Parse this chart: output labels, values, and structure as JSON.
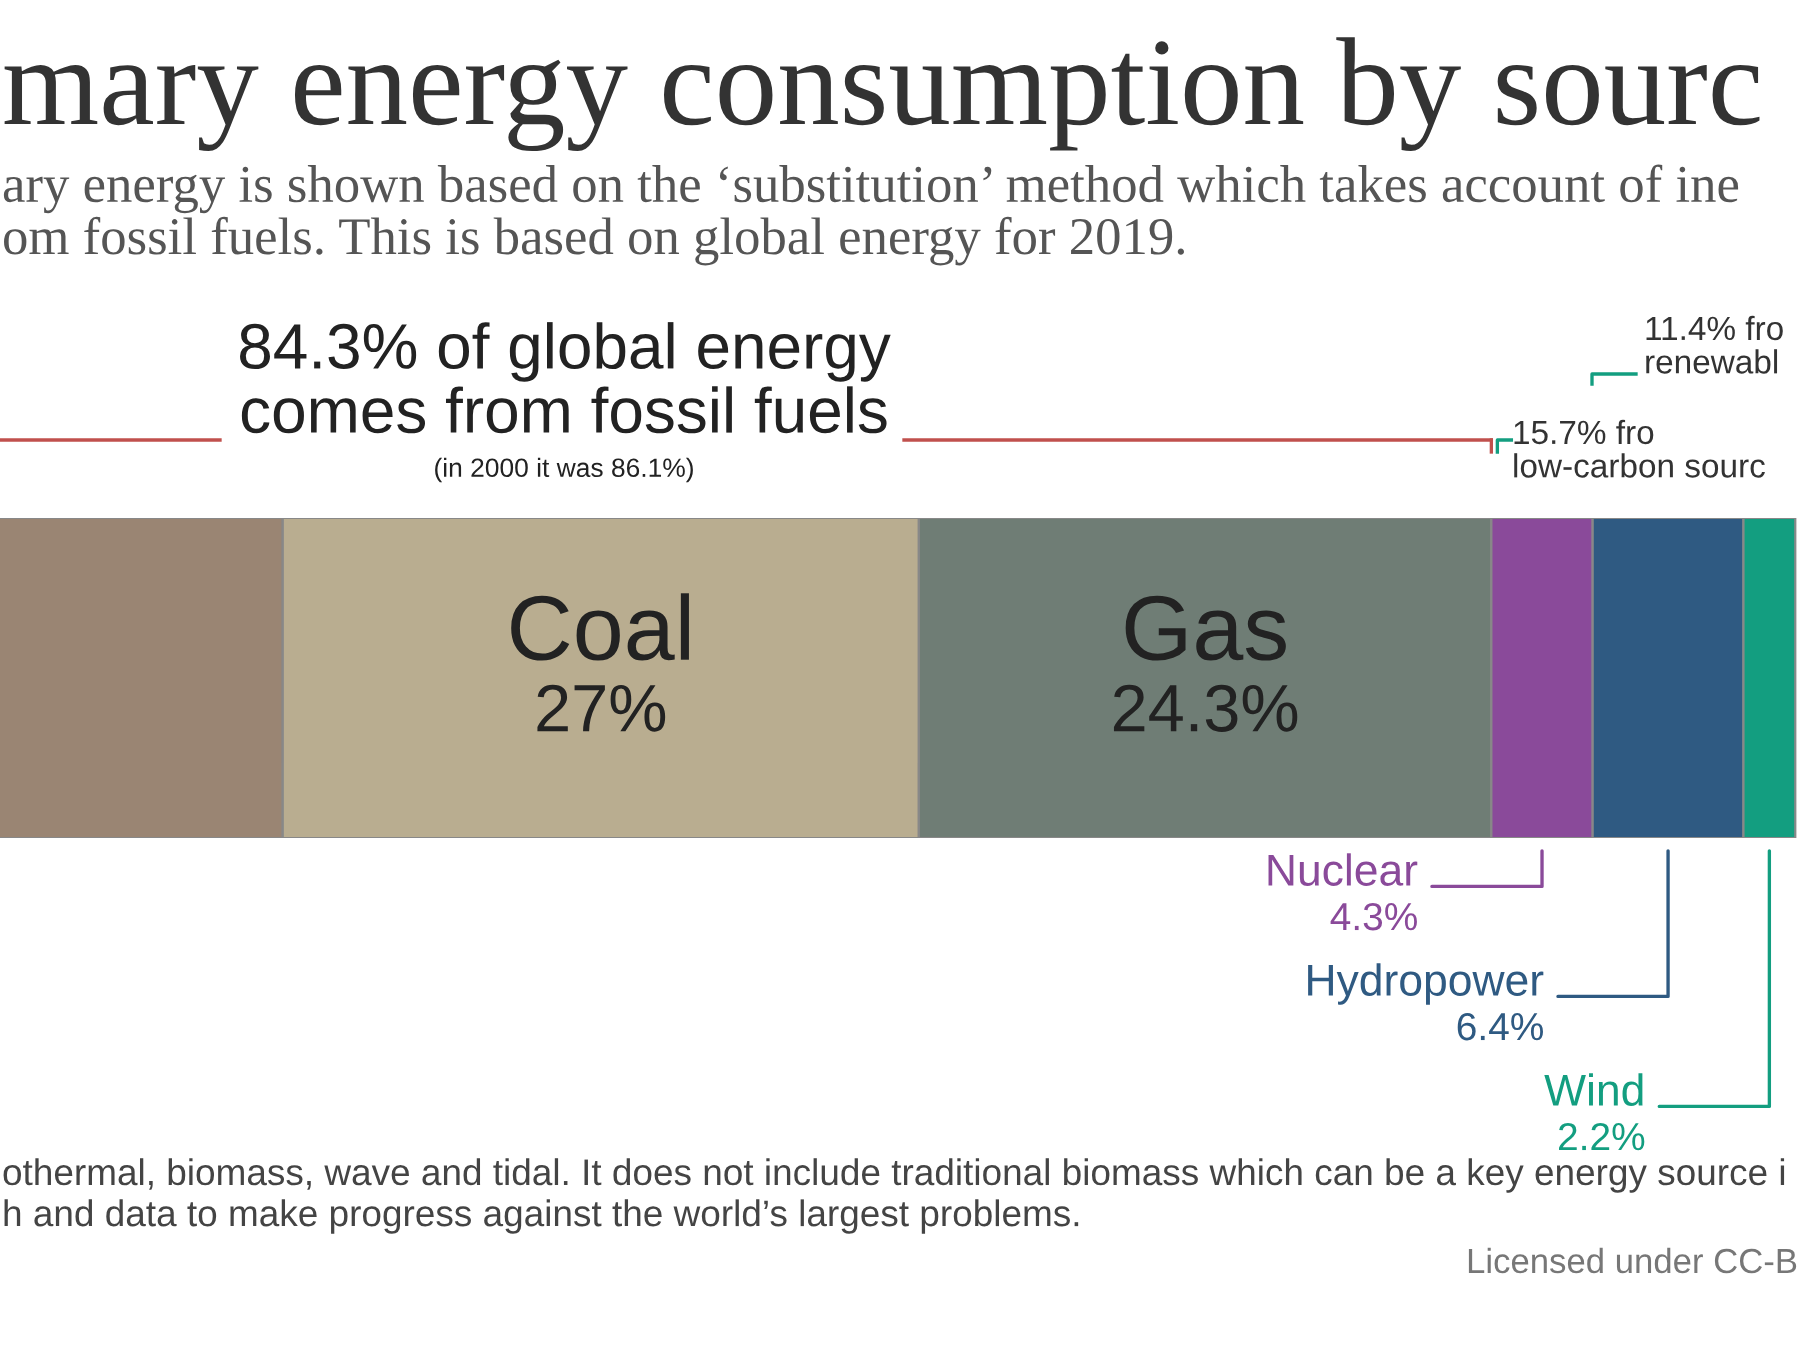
{
  "chart_data": {
    "type": "bar",
    "orientation": "horizontal",
    "stacked": true,
    "title": "mary energy consumption by sourc",
    "subtitle": "ary energy is shown based on the ‘substitution’ method which takes account of ine\nom fossil fuels. This is based on global energy for 2019.",
    "categories": [
      null
    ],
    "series": [
      {
        "color": "#9a8573",
        "values": [
          33.0
        ]
      },
      {
        "name": "Coal",
        "color": "#b9ad90",
        "values": [
          27
        ],
        "value_labels": [
          "27%"
        ]
      },
      {
        "name": "Gas",
        "color": "#6f7d75",
        "values": [
          24.3
        ],
        "value_labels": [
          "24.3%"
        ]
      },
      {
        "name": "Nuclear",
        "color": "#8a4a9a",
        "values": [
          4.3
        ],
        "value_labels": [
          "4.3%"
        ]
      },
      {
        "name": "Hydropower",
        "color": "#2f5a82",
        "values": [
          6.4
        ],
        "value_labels": [
          "6.4%"
        ]
      },
      {
        "name": "Wind",
        "color": "#139e80",
        "values": [
          2.2
        ],
        "value_labels": [
          "2.2%"
        ]
      }
    ],
    "xlim": [
      0,
      97.4
    ],
    "legend": false,
    "annotations": [
      "84.3% of global energy\ncomes from fossil fuels",
      "(in 2000 it was 86.1%)",
      "11.4% fro\nrenewabl",
      "15.7% fro\nlow-carbon sourc",
      "othermal, biomass, wave and tidal. It does not include traditional biomass which can be a key energy source i\nh and data to make progress against the world’s largest problems.",
      "Licensed under CC-B"
    ]
  }
}
